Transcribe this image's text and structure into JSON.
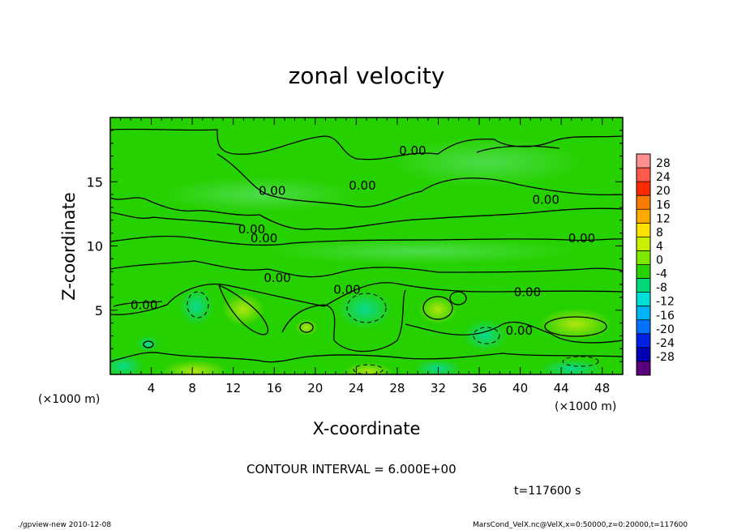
{
  "chart_data": {
    "type": "heatmap",
    "title": "zonal velocity",
    "xlabel": "X-coordinate",
    "ylabel": "Z-coordinate",
    "x_unit": "(×1000 m)",
    "xlim": [
      0,
      50
    ],
    "ylim": [
      0,
      20
    ],
    "x_ticks": [
      4,
      8,
      12,
      16,
      20,
      24,
      28,
      32,
      36,
      40,
      44,
      48
    ],
    "y_ticks": [
      5,
      10,
      15
    ],
    "contour_interval_text": "CONTOUR INTERVAL = 6.000E+00",
    "time_text": "t=117600 s",
    "contour_label": "0.00",
    "colorbar": {
      "levels": [
        28,
        24,
        20,
        16,
        12,
        8,
        4,
        0,
        -4,
        -8,
        -12,
        -16,
        -20,
        -24,
        -28
      ],
      "colors": [
        "#ff8f8f",
        "#ff5a4a",
        "#ff2a00",
        "#ff7a00",
        "#ffaa00",
        "#ffe000",
        "#c8f000",
        "#7ee800",
        "#28d200",
        "#00d878",
        "#00e0d8",
        "#00b4f8",
        "#0070ff",
        "#0020e6",
        "#0000b4",
        "#5a007a"
      ]
    },
    "contour_labels": [
      {
        "x": 29.5,
        "z": 17.4,
        "text": "0.00"
      },
      {
        "x": 24.6,
        "z": 14.7,
        "text": "0.00"
      },
      {
        "x": 15.8,
        "z": 14.3,
        "text": "0.00"
      },
      {
        "x": 42.5,
        "z": 13.6,
        "text": "0.00"
      },
      {
        "x": 13.8,
        "z": 11.3,
        "text": "0.00"
      },
      {
        "x": 15.0,
        "z": 10.6,
        "text": "0.00"
      },
      {
        "x": 46.0,
        "z": 10.6,
        "text": "0.00"
      },
      {
        "x": 16.3,
        "z": 7.5,
        "text": "0.00"
      },
      {
        "x": 23.1,
        "z": 6.6,
        "text": "0.00"
      },
      {
        "x": 40.7,
        "z": 6.4,
        "text": "0.00"
      },
      {
        "x": 3.3,
        "z": 5.4,
        "text": "0.00"
      },
      {
        "x": 39.9,
        "z": 3.4,
        "text": "0.00"
      }
    ]
  },
  "footer": {
    "left": "./gpview-new   2010-12-08",
    "right": "MarsCond_VelX.nc@VelX,x=0:50000,z=0:20000,t=117600"
  }
}
